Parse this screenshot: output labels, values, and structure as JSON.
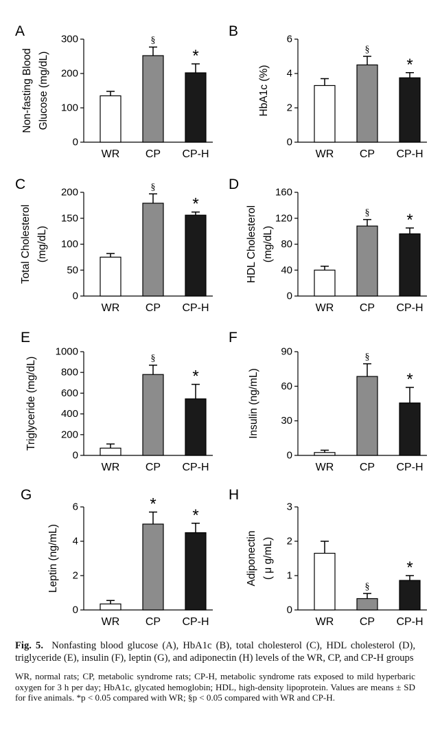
{
  "chart_data": [
    {
      "panel": "A",
      "type": "bar",
      "ylabel": [
        "Non-fasting Blood",
        "Glucose (mg/dL)"
      ],
      "categories": [
        "WR",
        "CP",
        "CP-H"
      ],
      "values": [
        135,
        252,
        202
      ],
      "errors": [
        13,
        25,
        26
      ],
      "markers": [
        "",
        "§",
        "*"
      ],
      "ylim": [
        0,
        300
      ],
      "yticks": [
        0,
        100,
        200,
        300
      ]
    },
    {
      "panel": "B",
      "type": "bar",
      "ylabel": [
        "HbA1c (%)"
      ],
      "categories": [
        "WR",
        "CP",
        "CP-H"
      ],
      "values": [
        3.3,
        4.5,
        3.75
      ],
      "errors": [
        0.4,
        0.5,
        0.3
      ],
      "markers": [
        "",
        "§",
        "*"
      ],
      "ylim": [
        0,
        6
      ],
      "yticks": [
        0,
        2,
        4,
        6
      ]
    },
    {
      "panel": "C",
      "type": "bar",
      "ylabel": [
        "Total Cholesterol",
        "(mg/dL)"
      ],
      "categories": [
        "WR",
        "CP",
        "CP-H"
      ],
      "values": [
        75,
        179,
        156
      ],
      "errors": [
        7,
        18,
        6
      ],
      "markers": [
        "",
        "§",
        "*"
      ],
      "ylim": [
        0,
        200
      ],
      "yticks": [
        0,
        50,
        100,
        150,
        200
      ]
    },
    {
      "panel": "D",
      "type": "bar",
      "ylabel": [
        "HDL Cholesterol",
        "(mg/dL)"
      ],
      "categories": [
        "WR",
        "CP",
        "CP-H"
      ],
      "values": [
        40,
        108,
        96
      ],
      "errors": [
        6,
        10,
        9
      ],
      "markers": [
        "",
        "§",
        "*"
      ],
      "ylim": [
        0,
        160
      ],
      "yticks": [
        0,
        40,
        80,
        120,
        160
      ]
    },
    {
      "panel": "E",
      "type": "bar",
      "ylabel": [
        "Triglyceride (mg/dL)"
      ],
      "categories": [
        "WR",
        "CP",
        "CP-H"
      ],
      "values": [
        70,
        780,
        545
      ],
      "errors": [
        40,
        90,
        140
      ],
      "markers": [
        "",
        "§",
        "*"
      ],
      "ylim": [
        0,
        1000
      ],
      "yticks": [
        0,
        200,
        400,
        600,
        800,
        1000
      ]
    },
    {
      "panel": "F",
      "type": "bar",
      "ylabel": [
        "Insulin (ng/mL)"
      ],
      "categories": [
        "WR",
        "CP",
        "CP-H"
      ],
      "values": [
        2.5,
        68.5,
        45.5
      ],
      "errors": [
        2,
        11,
        13.5
      ],
      "markers": [
        "",
        "§",
        "*"
      ],
      "ylim": [
        0,
        90
      ],
      "yticks": [
        0,
        30,
        60,
        90
      ]
    },
    {
      "panel": "G",
      "type": "bar",
      "ylabel": [
        "Leptin (ng/mL)"
      ],
      "categories": [
        "WR",
        "CP",
        "CP-H"
      ],
      "values": [
        0.35,
        5.0,
        4.5
      ],
      "errors": [
        0.2,
        0.7,
        0.55
      ],
      "markers": [
        "",
        "*",
        "*"
      ],
      "ylim": [
        0,
        6
      ],
      "yticks": [
        0,
        2,
        4,
        6
      ]
    },
    {
      "panel": "H",
      "type": "bar",
      "ylabel": [
        "Adiponectin",
        "( μ g/mL)"
      ],
      "categories": [
        "WR",
        "CP",
        "CP-H"
      ],
      "values": [
        1.65,
        0.33,
        0.86
      ],
      "errors": [
        0.35,
        0.15,
        0.14
      ],
      "markers": [
        "",
        "§",
        "*"
      ],
      "ylim": [
        0,
        3
      ],
      "yticks": [
        0,
        1,
        2,
        3
      ]
    }
  ],
  "bar_colors": [
    "#ffffff",
    "#8c8c8c",
    "#1a1a1a"
  ],
  "caption": {
    "label": "Fig. 5.",
    "text": "Nonfasting blood glucose (A), HbA1c (B), total cholesterol (C), HDL cholesterol (D), triglyceride (E), insulin (F), leptin (G), and adiponectin (H) levels of the WR, CP, and CP-H groups"
  },
  "footnote": {
    "text": "WR, normal rats; CP, metabolic syndrome rats; CP-H, metabolic syndrome rats exposed to mild hyperbaric oxygen for 3 h per day; HbA1c, glycated hemoglobin; HDL, high-density lipoprotein. Values are means ± SD for five animals.",
    "sig_star": "*p < 0.05 compared with WR;",
    "sig_section": "§p < 0.05 compared with WR and CP-H."
  }
}
